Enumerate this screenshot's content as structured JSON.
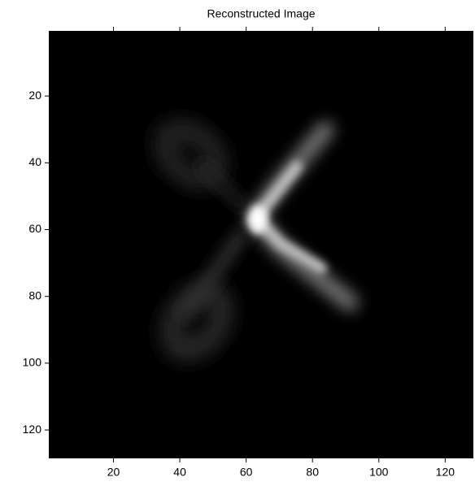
{
  "chart_data": {
    "type": "image",
    "title": "Reconstructed Image",
    "xlim": [
      0.5,
      128.5
    ],
    "ylim": [
      0.5,
      128.5
    ],
    "xticks": [
      20,
      40,
      60,
      80,
      100,
      120
    ],
    "yticks": [
      20,
      40,
      60,
      80,
      100,
      120
    ],
    "colormap": "gray"
  }
}
